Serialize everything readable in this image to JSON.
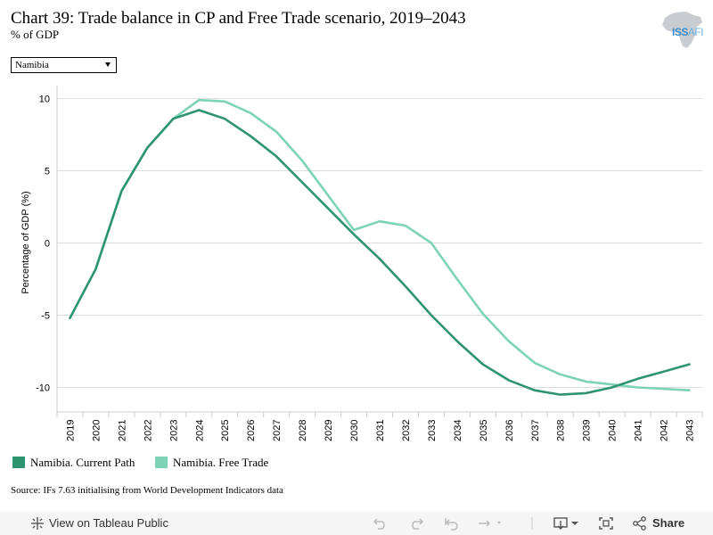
{
  "header": {
    "title": "Chart 39: Trade balance in CP and Free Trade scenario, 2019–2043",
    "subtitle": "% of GDP",
    "logo_text": "ISS",
    "logo_suffix": "AFI"
  },
  "filter": {
    "selected": "Namibia"
  },
  "source": "Source: IFs 7.63 initialising from World Development Indicators data",
  "footer": {
    "view_label": "View on Tableau Public",
    "share_label": "Share"
  },
  "colors": {
    "current_path": "#2e9470",
    "free_trade": "#7dd3b5",
    "grid": "#dddddd"
  },
  "chart_data": {
    "type": "line",
    "title": "Chart 39: Trade balance in CP and Free Trade scenario, 2019–2043",
    "ylabel": "Percentage of GDP (%)",
    "xlabel": "",
    "ylim": [
      -11.7,
      10.9
    ],
    "yticks": [
      10,
      5,
      0,
      -5,
      -10
    ],
    "ytick_labels": [
      "10",
      "5",
      "0",
      "-5",
      "-10"
    ],
    "grid": true,
    "legend_position": "bottom-left",
    "x": [
      "2019",
      "2020",
      "2021",
      "2022",
      "2023",
      "2024",
      "2025",
      "2026",
      "2027",
      "2028",
      "2029",
      "2030",
      "2031",
      "2032",
      "2033",
      "2034",
      "2035",
      "2036",
      "2037",
      "2038",
      "2039",
      "2040",
      "2041",
      "2042",
      "2043"
    ],
    "series": [
      {
        "name": "Namibia. Current Path",
        "values": [
          -5.2,
          -1.8,
          3.6,
          6.6,
          8.6,
          9.2,
          8.6,
          7.4,
          6.0,
          4.2,
          2.4,
          0.6,
          -1.1,
          -3.0,
          -5.0,
          -6.8,
          -8.4,
          -9.5,
          -10.2,
          -10.5,
          -10.4,
          -10.0,
          -9.4,
          -8.9,
          -8.4
        ]
      },
      {
        "name": "Namibia. Free Trade",
        "values": [
          -5.2,
          -1.8,
          3.6,
          6.6,
          8.6,
          9.9,
          9.8,
          9.0,
          7.7,
          5.7,
          3.3,
          0.9,
          1.5,
          1.2,
          0.0,
          -2.5,
          -4.9,
          -6.8,
          -8.3,
          -9.1,
          -9.6,
          -9.8,
          -10.0,
          -10.1,
          -10.2
        ]
      }
    ]
  }
}
